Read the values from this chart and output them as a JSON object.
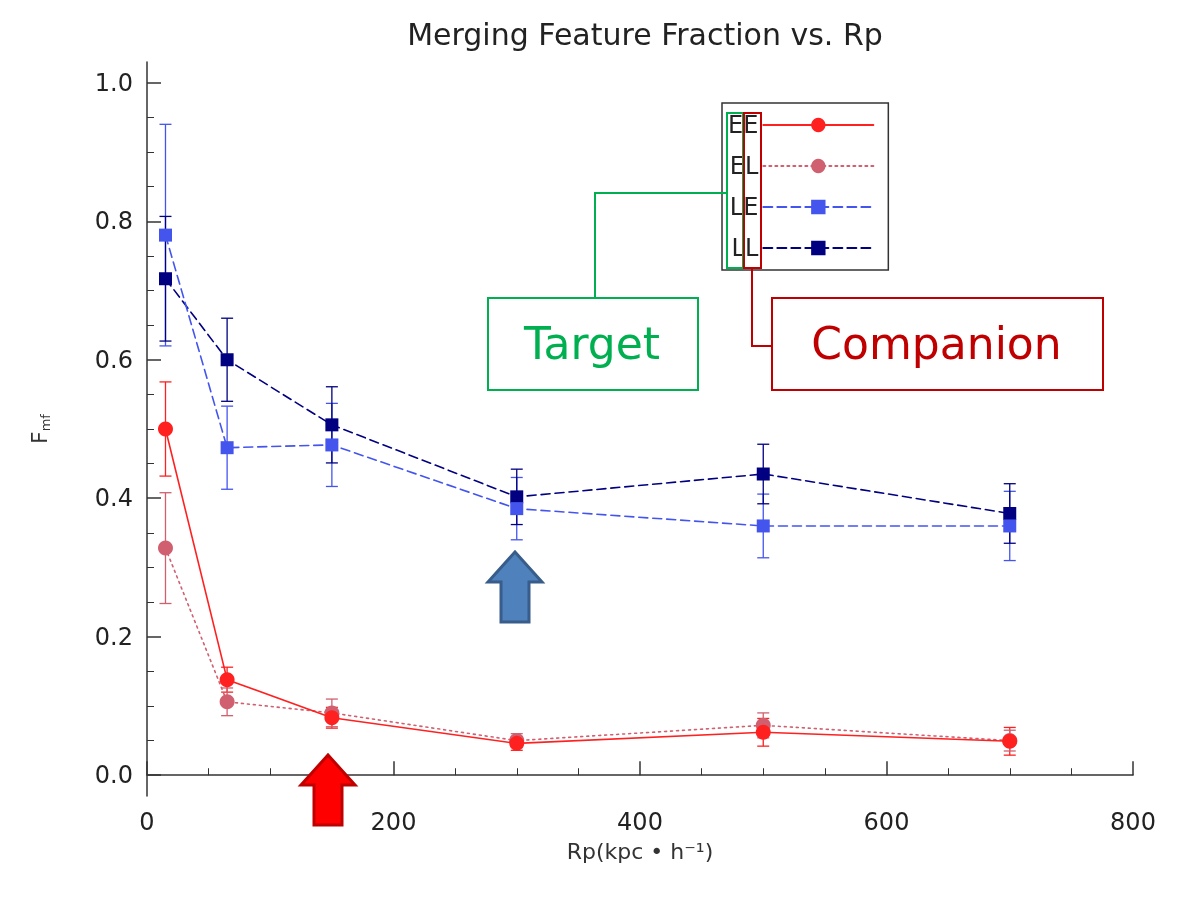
{
  "chart_data": {
    "type": "line",
    "title": "Merging Feature Fraction vs. Rp",
    "xlabel": "Rp(kpc • h⁻¹)",
    "ylabel": "F$_{mf}$",
    "x": [
      15,
      65,
      150,
      300,
      500,
      700
    ],
    "xlim": [
      0,
      800
    ],
    "xticks": [
      0,
      200,
      400,
      600,
      800
    ],
    "ylim": [
      -0.03,
      1.03
    ],
    "yticks": [
      {
        "value": 0,
        "label": "0.0"
      },
      {
        "value": 0.2,
        "label": "0.2"
      },
      {
        "value": 0.4,
        "label": "0.4"
      },
      {
        "value": 0.6,
        "label": "0.6"
      },
      {
        "value": 0.8,
        "label": "0.8"
      },
      {
        "value": 1,
        "label": "1.0"
      }
    ],
    "grid": false,
    "legend": "top right",
    "series": [
      {
        "name": "EE",
        "color": "#ff2020",
        "marker": "circle",
        "line_style": "solid",
        "values": [
          0.5,
          0.138,
          0.083,
          0.046,
          0.062,
          0.049
        ],
        "errors": [
          0.068,
          0.018,
          0.015,
          0.01,
          0.02,
          0.02
        ]
      },
      {
        "name": "EL",
        "color": "#d06070",
        "marker": "circle",
        "line_style": "dotted",
        "values": [
          0.328,
          0.106,
          0.09,
          0.05,
          0.072,
          0.05
        ],
        "errors": [
          0.08,
          0.02,
          0.02,
          0.01,
          0.018,
          0.015
        ]
      },
      {
        "name": "LE",
        "color": "#4455ee",
        "marker": "square",
        "line_style": "dashed",
        "values": [
          0.78,
          0.473,
          0.477,
          0.385,
          0.36,
          0.36
        ],
        "errors": [
          0.16,
          0.06,
          0.06,
          0.045,
          0.046,
          0.05
        ]
      },
      {
        "name": "LL",
        "color": "#000080",
        "marker": "square",
        "line_style": "dashed",
        "values": [
          0.717,
          0.6,
          0.506,
          0.402,
          0.435,
          0.378
        ],
        "errors": [
          0.09,
          0.06,
          0.055,
          0.04,
          0.043,
          0.043
        ]
      }
    ],
    "annotations": [
      "Target",
      "Companion"
    ]
  }
}
